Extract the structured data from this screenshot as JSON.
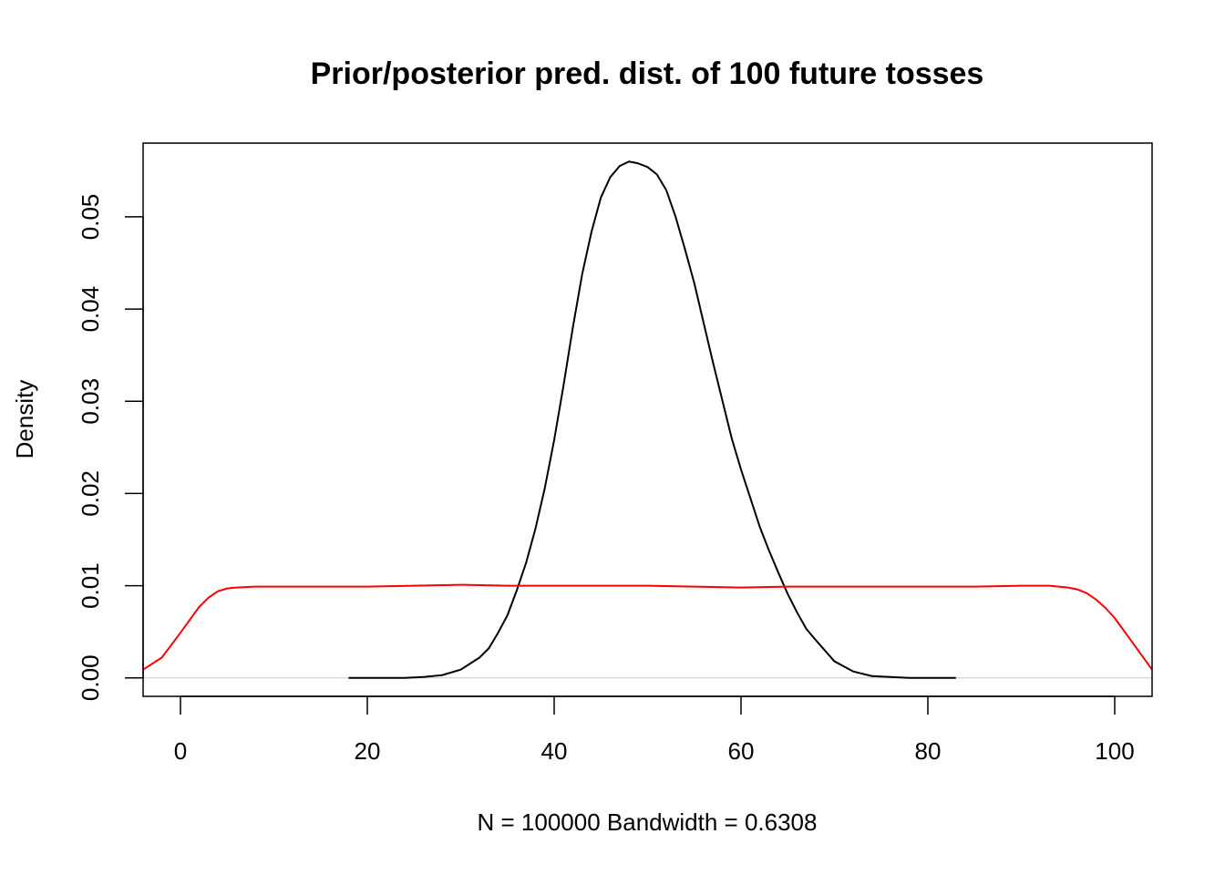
{
  "chart_data": {
    "type": "line",
    "title": "Prior/posterior pred. dist. of 100 future tosses",
    "xlabel": "N = 100000   Bandwidth = 0.6308",
    "ylabel": "Density",
    "xlim": [
      -4,
      104
    ],
    "ylim": [
      -0.002,
      0.058
    ],
    "xticks": [
      0,
      20,
      40,
      60,
      80,
      100
    ],
    "xtick_labels": [
      "0",
      "20",
      "40",
      "60",
      "80",
      "100"
    ],
    "yticks": [
      0.0,
      0.01,
      0.02,
      0.03,
      0.04,
      0.05
    ],
    "ytick_labels": [
      "0.00",
      "0.01",
      "0.02",
      "0.03",
      "0.04",
      "0.05"
    ],
    "grid": false,
    "series": [
      {
        "color": "#000000",
        "x": [
          18,
          20,
          22,
          24,
          26,
          28,
          30,
          32,
          33,
          34,
          35,
          36,
          37,
          38,
          39,
          40,
          41,
          42,
          43,
          44,
          45,
          46,
          47,
          48,
          49,
          50,
          51,
          52,
          53,
          54,
          55,
          56,
          57,
          58,
          59,
          60,
          61,
          62,
          63,
          64,
          65,
          66,
          67,
          68,
          70,
          72,
          74,
          76,
          78,
          80,
          83
        ],
        "y": [
          0.0,
          0.0,
          0.0,
          0.0,
          0.0001,
          0.0003,
          0.0009,
          0.0022,
          0.0032,
          0.0049,
          0.0068,
          0.0095,
          0.0125,
          0.0162,
          0.0206,
          0.0258,
          0.0317,
          0.038,
          0.0438,
          0.0484,
          0.0521,
          0.0543,
          0.0555,
          0.056,
          0.0558,
          0.0554,
          0.0546,
          0.0529,
          0.05,
          0.0465,
          0.0428,
          0.0385,
          0.0342,
          0.0301,
          0.026,
          0.0226,
          0.0195,
          0.0164,
          0.0138,
          0.0114,
          0.0091,
          0.0071,
          0.0053,
          0.0041,
          0.0018,
          0.0007,
          0.0002,
          0.0001,
          0.0,
          0.0,
          0.0
        ]
      },
      {
        "color": "#ff0000",
        "x": [
          -4,
          -2,
          0,
          1,
          2,
          3,
          4,
          5,
          6,
          8,
          10,
          15,
          20,
          25,
          30,
          35,
          40,
          45,
          50,
          55,
          60,
          65,
          70,
          75,
          80,
          85,
          90,
          93,
          95,
          96,
          97,
          98,
          99,
          100,
          102,
          104
        ],
        "y": [
          0.0009,
          0.0022,
          0.0049,
          0.0063,
          0.0077,
          0.0087,
          0.0094,
          0.0097,
          0.0098,
          0.0099,
          0.0099,
          0.0099,
          0.0099,
          0.01,
          0.0101,
          0.01,
          0.01,
          0.01,
          0.01,
          0.0099,
          0.0098,
          0.0099,
          0.0099,
          0.0099,
          0.0099,
          0.0099,
          0.01,
          0.01,
          0.0098,
          0.0096,
          0.0092,
          0.0085,
          0.0076,
          0.0065,
          0.0037,
          0.0009
        ]
      }
    ]
  }
}
